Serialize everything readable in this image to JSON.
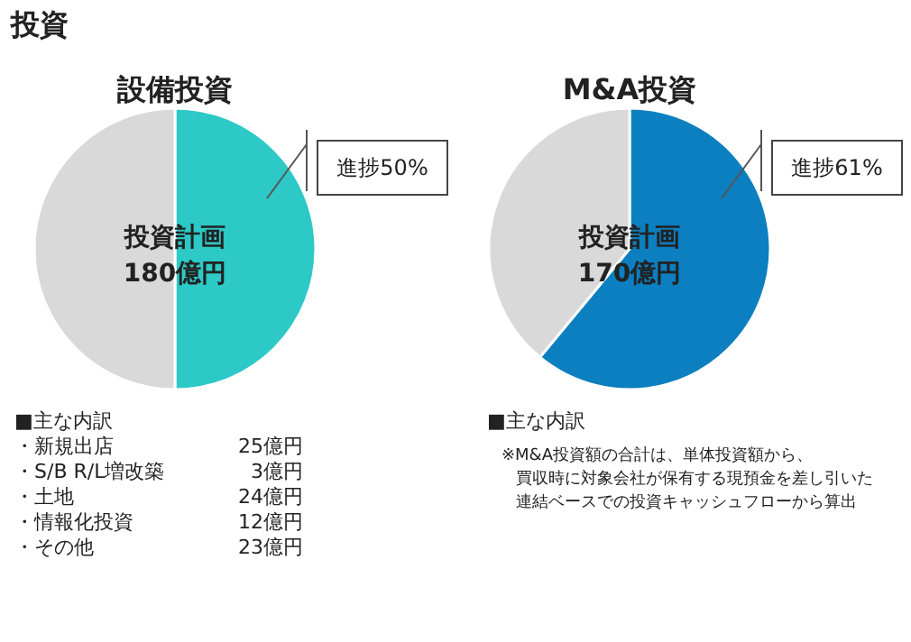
{
  "chart_data": [
    {
      "type": "pie",
      "title": "設備投資",
      "categories": [
        null,
        null
      ],
      "values": [
        50,
        50
      ],
      "colors": [
        "#2cc9c6",
        "#d9d9d9"
      ],
      "value_labels": [
        "進捗50%",
        null
      ],
      "annotations": [
        "投資",
        "投資計画",
        "180億円",
        "■主な内訳",
        "・新規出店 25億円",
        "・S/B R/L増改築 3億円",
        "・土地 24億円",
        "・情報化投資 12億円",
        "・その他 23億円"
      ]
    },
    {
      "type": "pie",
      "title": "M&A投資",
      "categories": [
        null,
        null
      ],
      "values": [
        61,
        39
      ],
      "colors": [
        "#0b7fc0",
        "#d9d9d9"
      ],
      "value_labels": [
        "進捗61%",
        null
      ],
      "annotations": [
        "投資計画",
        "170億円",
        "■主な内訳",
        "※M&A投資額の合計は、単体投資額から、",
        "買収時に対象会社が保有する現預金を差し引いた",
        "連結ベースでの投資キャッシュフローから算出"
      ]
    }
  ]
}
